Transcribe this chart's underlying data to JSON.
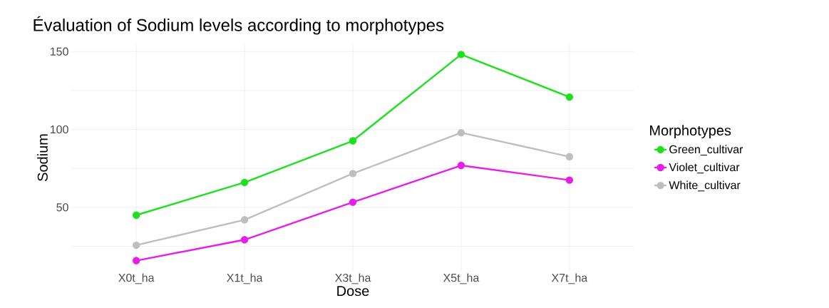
{
  "chart_data": {
    "type": "line",
    "title": "Évaluation of Sodium levels according to morphotypes",
    "xlabel": "Dose",
    "ylabel": "Sodium",
    "legend_title": "Morphotypes",
    "categories": [
      "X0t_ha",
      "X1t_ha",
      "X3t_ha",
      "X5t_ha",
      "X7t_ha"
    ],
    "series": [
      {
        "name": "Green_cultivar",
        "color": "#1ee01e",
        "values": [
          45.0,
          66.0,
          92.7,
          148.1,
          120.8
        ]
      },
      {
        "name": "Violet_cultivar",
        "color": "#e61ee6",
        "values": [
          15.8,
          29.2,
          53.3,
          76.9,
          67.5
        ]
      },
      {
        "name": "White_cultivar",
        "color": "#bebebe",
        "values": [
          25.7,
          42.0,
          71.7,
          97.9,
          82.5
        ]
      }
    ],
    "ylim": [
      9.2,
      154.7
    ],
    "yticks": [
      {
        "value": 25,
        "label": null
      },
      50,
      {
        "value": 75,
        "label": null
      },
      100,
      {
        "value": 125,
        "label": null
      },
      150
    ],
    "grid": true,
    "legend": "right",
    "marker": "circle",
    "line_style": "solid"
  }
}
